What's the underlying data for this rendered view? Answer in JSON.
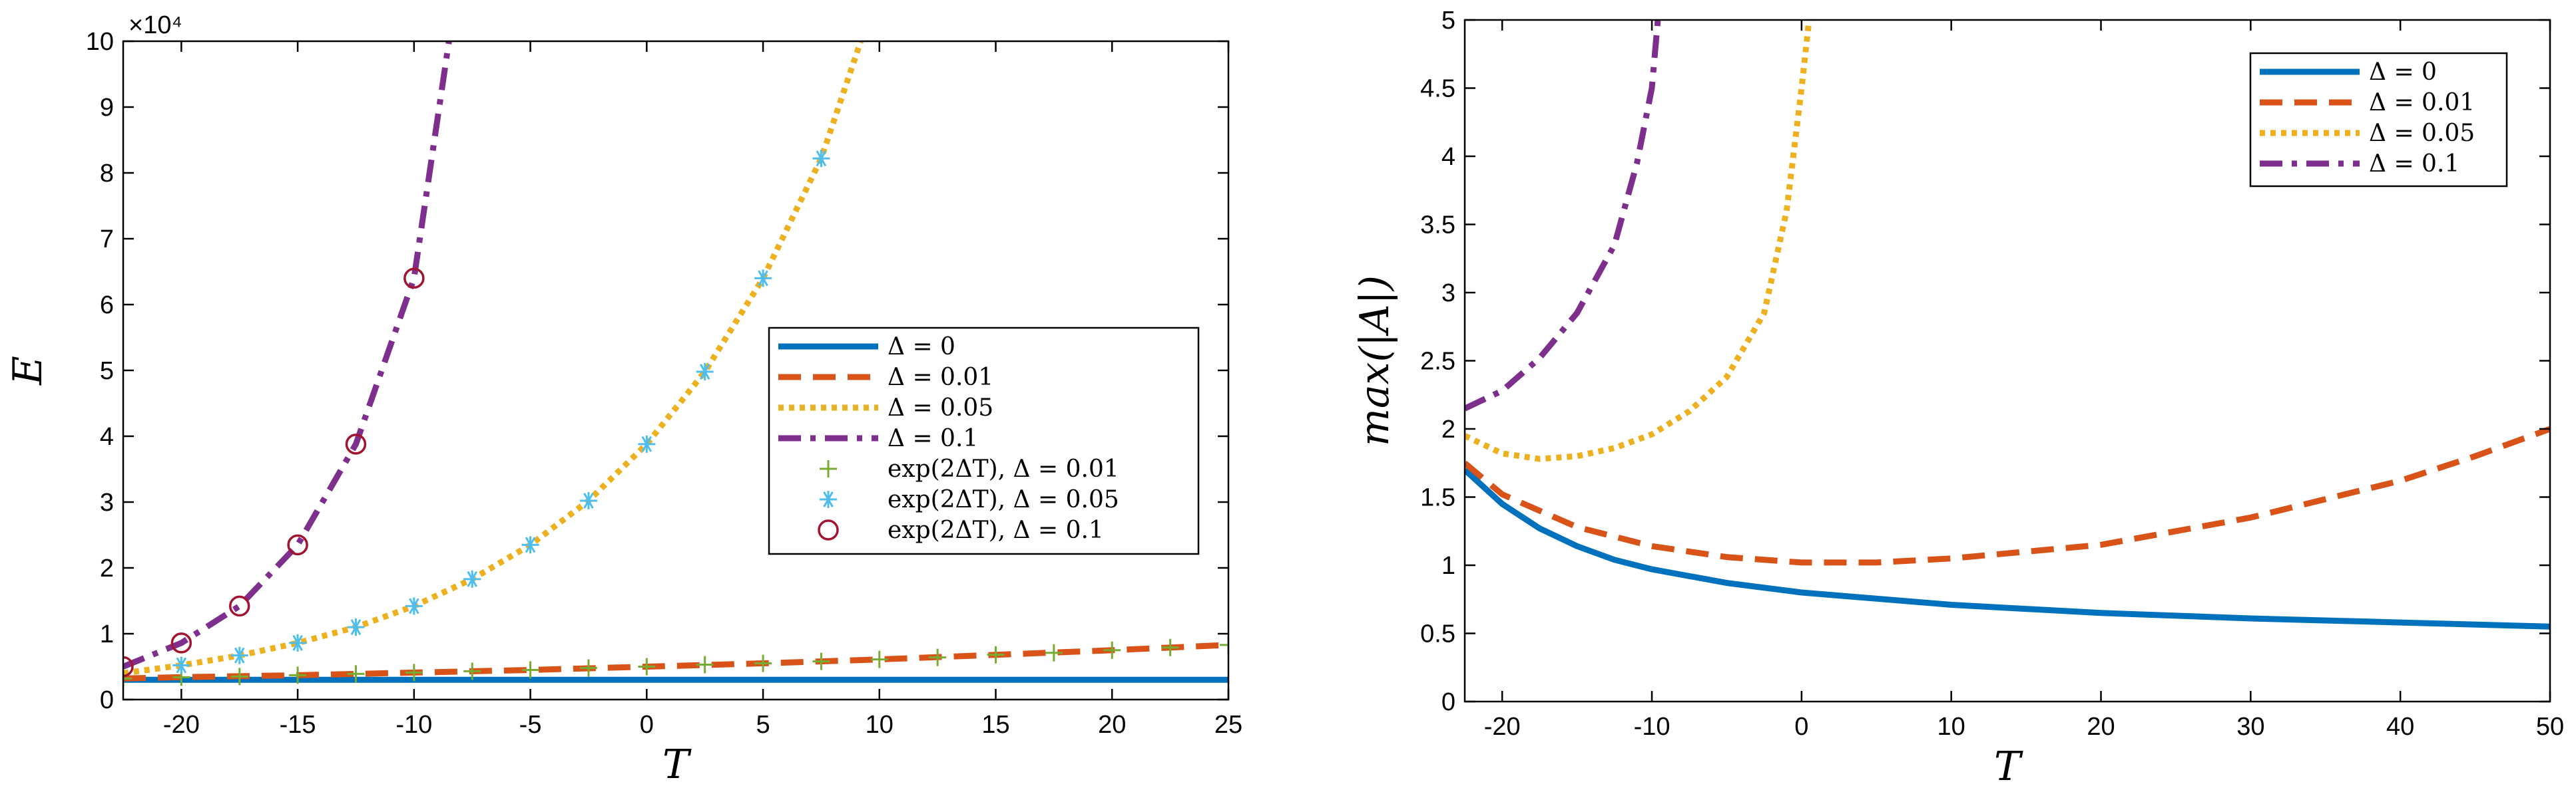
{
  "chart_data": [
    {
      "type": "line",
      "title": "",
      "xlabel": "T",
      "ylabel": "E",
      "exponent_label": "×10⁴",
      "xlim": [
        -22.5,
        25
      ],
      "ylim": [
        0,
        10
      ],
      "xticks": [
        -20,
        -15,
        -10,
        -5,
        0,
        5,
        10,
        15,
        20,
        25
      ],
      "yticks": [
        0,
        1,
        2,
        3,
        4,
        5,
        6,
        7,
        8,
        9,
        10
      ],
      "xtick_labels": [
        "-20",
        "-15",
        "-10",
        "-5",
        "0",
        "5",
        "10",
        "15",
        "20",
        "25"
      ],
      "ytick_labels": [
        "0",
        "1",
        "2",
        "3",
        "4",
        "5",
        "6",
        "7",
        "8",
        "9",
        "10"
      ],
      "legend_position": "right",
      "series": [
        {
          "name": "Δ = 0",
          "color": "#0072BD",
          "style": "solid",
          "x": [
            -22.5,
            25
          ],
          "y": [
            0.3,
            0.3
          ]
        },
        {
          "name": "Δ = 0.01",
          "color": "#D95319",
          "style": "dashed",
          "x": [
            -22.5,
            -20,
            -15,
            -10,
            -5,
            0,
            5,
            10,
            15,
            20,
            25
          ],
          "y": [
            0.32,
            0.34,
            0.37,
            0.41,
            0.45,
            0.5,
            0.55,
            0.61,
            0.68,
            0.75,
            0.83
          ]
        },
        {
          "name": "Δ = 0.05",
          "color": "#EDB120",
          "style": "dotted",
          "x": [
            -22.5,
            -20,
            -17.5,
            -15,
            -12.5,
            -10,
            -7.5,
            -5,
            -2.5,
            0,
            2.5,
            5,
            7.5,
            9.2
          ],
          "y": [
            0.4,
            0.52,
            0.67,
            0.86,
            1.1,
            1.42,
            1.83,
            2.35,
            3.02,
            3.88,
            4.98,
            6.4,
            8.22,
            10.0
          ]
        },
        {
          "name": "Δ = 0.1",
          "color": "#7E2F8E",
          "style": "dashdot",
          "x": [
            -22.5,
            -20,
            -17.5,
            -15,
            -12.5,
            -10,
            -8.5
          ],
          "y": [
            0.5,
            0.86,
            1.42,
            2.35,
            3.88,
            6.4,
            10.0
          ]
        },
        {
          "name": "exp(2ΔT), Δ = 0.01",
          "color": "#77AC30",
          "marker": "+",
          "x": [
            -22.5,
            -20,
            -17.5,
            -15,
            -12.5,
            -10,
            -7.5,
            -5,
            -2.5,
            0,
            2.5,
            5,
            7.5,
            10,
            12.5,
            15,
            17.5,
            20,
            22.5,
            25
          ],
          "y": [
            0.32,
            0.34,
            0.35,
            0.37,
            0.39,
            0.41,
            0.43,
            0.45,
            0.48,
            0.5,
            0.53,
            0.55,
            0.58,
            0.61,
            0.64,
            0.68,
            0.71,
            0.75,
            0.79,
            0.83
          ]
        },
        {
          "name": "exp(2ΔT), Δ = 0.05",
          "color": "#4DBEEE",
          "marker": "*",
          "x": [
            -20,
            -17.5,
            -15,
            -12.5,
            -10,
            -7.5,
            -5,
            -2.5,
            0,
            2.5,
            5,
            7.5
          ],
          "y": [
            0.52,
            0.67,
            0.86,
            1.1,
            1.42,
            1.83,
            2.35,
            3.02,
            3.88,
            4.98,
            6.4,
            8.22
          ]
        },
        {
          "name": "exp(2ΔT), Δ = 0.1",
          "color": "#A2142F",
          "marker": "o",
          "x": [
            -22.5,
            -20,
            -17.5,
            -15,
            -12.5,
            -10
          ],
          "y": [
            0.5,
            0.86,
            1.42,
            2.35,
            3.88,
            6.4
          ]
        }
      ]
    },
    {
      "type": "line",
      "title": "",
      "xlabel": "T",
      "ylabel": "max(|A|)",
      "xlim": [
        -22.5,
        50
      ],
      "ylim": [
        0,
        5
      ],
      "xticks": [
        -20,
        -10,
        0,
        10,
        20,
        30,
        40,
        50
      ],
      "yticks": [
        0,
        0.5,
        1,
        1.5,
        2,
        2.5,
        3,
        3.5,
        4,
        4.5,
        5
      ],
      "xtick_labels": [
        "-20",
        "-10",
        "0",
        "10",
        "20",
        "30",
        "40",
        "50"
      ],
      "ytick_labels": [
        "0",
        "0.5",
        "1",
        "1.5",
        "2",
        "2.5",
        "3",
        "3.5",
        "4",
        "4.5",
        "5"
      ],
      "legend_position": "top-right",
      "series": [
        {
          "name": "Δ = 0",
          "color": "#0072BD",
          "style": "solid",
          "x": [
            -22.5,
            -20,
            -17.5,
            -15,
            -12.5,
            -10,
            -5,
            0,
            10,
            20,
            30,
            40,
            50
          ],
          "y": [
            1.7,
            1.45,
            1.27,
            1.14,
            1.04,
            0.97,
            0.87,
            0.8,
            0.71,
            0.65,
            0.61,
            0.58,
            0.55
          ]
        },
        {
          "name": "Δ = 0.01",
          "color": "#D95319",
          "style": "dashed",
          "x": [
            -22.5,
            -20,
            -15,
            -10,
            -5,
            0,
            5,
            10,
            20,
            30,
            40,
            45,
            50
          ],
          "y": [
            1.75,
            1.52,
            1.28,
            1.14,
            1.06,
            1.02,
            1.02,
            1.05,
            1.15,
            1.35,
            1.62,
            1.8,
            2.0
          ]
        },
        {
          "name": "Δ = 0.05",
          "color": "#EDB120",
          "style": "dotted",
          "x": [
            -22.5,
            -20,
            -17.5,
            -15,
            -12.5,
            -10,
            -7.5,
            -5,
            -2.5,
            -1,
            0,
            0.5
          ],
          "y": [
            1.95,
            1.82,
            1.78,
            1.8,
            1.86,
            1.96,
            2.13,
            2.38,
            2.85,
            3.6,
            4.5,
            5.0
          ]
        },
        {
          "name": "Δ = 0.1",
          "color": "#7E2F8E",
          "style": "dashdot",
          "x": [
            -22.5,
            -20,
            -17.5,
            -15,
            -12.5,
            -11,
            -10,
            -9.6
          ],
          "y": [
            2.15,
            2.28,
            2.52,
            2.85,
            3.35,
            3.95,
            4.5,
            5.0
          ]
        }
      ]
    }
  ]
}
